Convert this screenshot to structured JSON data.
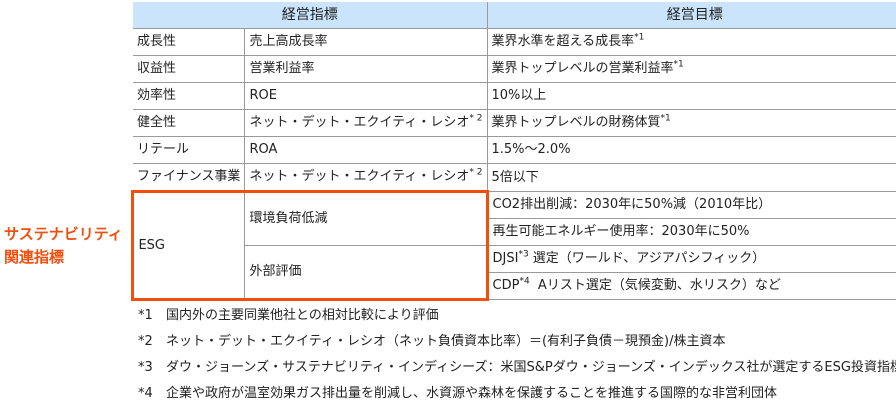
{
  "header": {
    "indicator": "経営指標",
    "target": "経営目標"
  },
  "rows": [
    {
      "category": "成長性",
      "indicator": "売上高成長率",
      "indicator_note": "",
      "target": "業界水準を超える成長率",
      "target_note": "*1"
    },
    {
      "category": "収益性",
      "indicator": "営業利益率",
      "indicator_note": "",
      "target": "業界トップレベルの営業利益率",
      "target_note": "*1"
    },
    {
      "category": "効率性",
      "indicator": "ROE",
      "indicator_note": "",
      "target": "10%以上",
      "target_note": ""
    },
    {
      "category": "健全性",
      "indicator": "ネット・デット・エクイティ・レシオ",
      "indicator_note": "* 2",
      "target": "業界トップレベルの財務体質",
      "target_note": "*1"
    },
    {
      "category": "リテール",
      "indicator": "ROA",
      "indicator_note": "",
      "target": "1.5%～2.0%",
      "target_note": ""
    },
    {
      "category": "ファイナンス事業",
      "indicator": "ネット・デット・エクイティ・レシオ",
      "indicator_note": "* 2",
      "target": "5倍以下",
      "target_note": ""
    }
  ],
  "esg": {
    "side_label": [
      "サステナビリティ",
      "関連指標"
    ],
    "category": "ESG",
    "env": "環境負荷低減",
    "env_targets": [
      "CO2排出削減：2030年に50%減（2010年比）",
      "再生可能エネルギー使用率：2030年に50%"
    ],
    "ext": "外部評価",
    "ext_t1_a": "DJSI",
    "ext_t1_note": "*3",
    "ext_t1_b": " 選定（ワールド、アジアパシフィック）",
    "ext_t2_a": "CDP",
    "ext_t2_note": "*4",
    "ext_t2_b": "  Aリスト選定（気候変動、水リスク）など"
  },
  "notes": [
    {
      "key": "*1",
      "text": "国内外の主要同業他社との相対比較により評価"
    },
    {
      "key": "*2",
      "text": "ネット・デット・エクイティ・レシオ（ネット負債資本比率）＝(有利子負債－現預金)/株主資本"
    },
    {
      "key": "*3",
      "text": "ダウ・ジョーンズ・サステナビリティ・インディシーズ：米国S&Pダウ・ジョーンズ・インデックス社が選定するESG投資指標"
    },
    {
      "key": "*4",
      "text": "企業や政府が温室効果ガス排出量を削減し、水資源や森林を保護することを推進する国際的な非営利団体"
    }
  ],
  "colors": {
    "accent": "#f0500f",
    "header_bg": "#c9e4fb"
  }
}
